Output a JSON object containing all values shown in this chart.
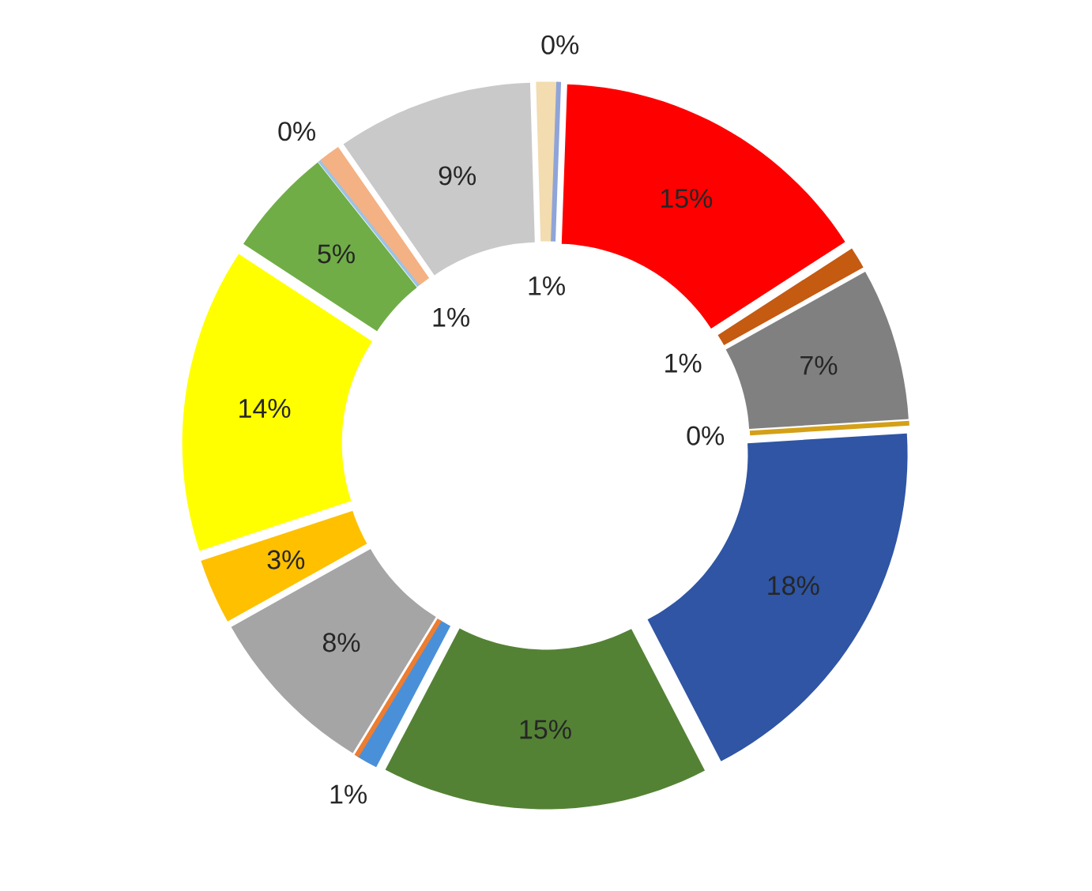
{
  "chart_data": {
    "type": "donut",
    "categories": [
      null,
      null,
      null,
      null,
      null,
      null,
      null,
      null,
      null,
      null,
      null,
      null,
      null,
      null,
      null,
      null,
      null
    ],
    "values": [
      15,
      1,
      7,
      0,
      18,
      15,
      1,
      0,
      8,
      3,
      14,
      5,
      0,
      1,
      9,
      1,
      0
    ],
    "colors": [
      "#ff0000",
      "#c55a11",
      "#808080",
      "#d4a017",
      "#2f55a4",
      "#548235",
      "#4a90d9",
      "#ed7d31",
      "#a5a5a5",
      "#ffc000",
      "#ffff00",
      "#70ad47",
      "#9dc3e6",
      "#f4b183",
      "#c9c9c9",
      "#f2dcb0",
      "#8fa4d8"
    ],
    "value_labels": [
      "15%",
      "1%",
      "7%",
      "0%",
      "18%",
      "15%",
      "1%",
      null,
      "8%",
      "3%",
      "14%",
      "5%",
      "0%",
      "1%",
      "9%",
      "1%",
      "0%"
    ]
  }
}
